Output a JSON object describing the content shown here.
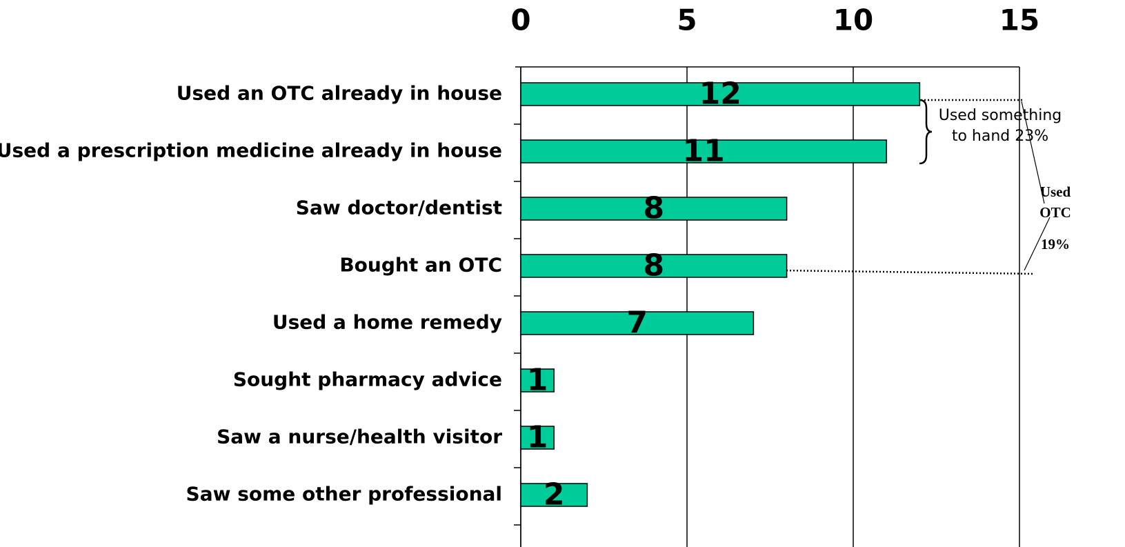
{
  "chart_data": {
    "type": "bar",
    "orientation": "horizontal",
    "categories": [
      "Used an OTC already in house",
      "Used a prescription medicine already in house",
      "Saw doctor/dentist",
      "Bought an OTC",
      "Used a home remedy",
      "Sought pharmacy advice",
      "Saw a nurse/health visitor",
      "Saw some other professional"
    ],
    "values": [
      12,
      11,
      8,
      8,
      7,
      1,
      1,
      2
    ],
    "color": "#00cc99",
    "xlim": [
      0,
      15
    ],
    "xticks": [
      0,
      5,
      10,
      15
    ],
    "grid": true,
    "annotations": [
      {
        "lines": [
          "Used something",
          "to hand 23%"
        ]
      },
      {
        "lines": [
          "Used",
          "OTC",
          "19%"
        ]
      }
    ]
  }
}
